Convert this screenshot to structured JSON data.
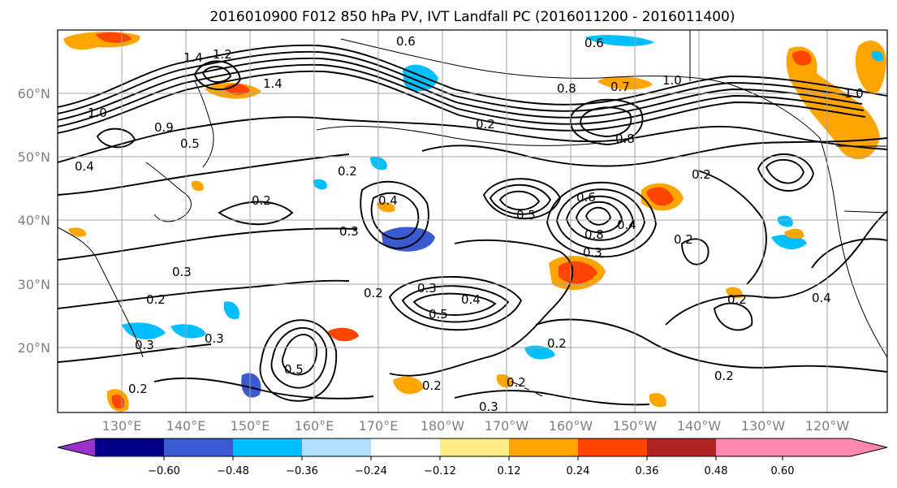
{
  "figure": {
    "title": "2016010900 F012 850 hPa PV, IVT Landfall PC (2016011200 - 2016011400)"
  },
  "map": {
    "lat_labels": [
      "60°N",
      "50°N",
      "40°N",
      "30°N",
      "20°N"
    ],
    "lon_labels": [
      "130°E",
      "140°E",
      "150°E",
      "160°E",
      "170°E",
      "180°W",
      "170°W",
      "160°W",
      "150°W",
      "140°W",
      "130°W",
      "120°W"
    ],
    "contour_labels": [
      "0.6",
      "0.6",
      "1.4",
      "1.2",
      "1.4",
      "1.0",
      "0.8",
      "0.7",
      "1.0",
      "1.0",
      "0.9",
      "0.5",
      "0.4",
      "0.2",
      "0.2",
      "0.2",
      "0.4",
      "0.3",
      "0.2",
      "0.5",
      "0.4",
      "0.8",
      "0.3",
      "0.6",
      "0.8",
      "0.2",
      "0.3",
      "0.2",
      "0.3",
      "0.5",
      "0.4",
      "0.2",
      "0.3",
      "0.3",
      "0.5",
      "0.2",
      "0.2",
      "0.3",
      "0.2",
      "0.2",
      "0.2",
      "0.2",
      "0.4"
    ],
    "shaded_colors": {
      "strong_positive": "#ff4500",
      "positive": "#ffa500",
      "weak_positive": "#ffee88",
      "negative": "#00bfff",
      "strong_negative": "#3a5bcf",
      "weak_negative": "#b0e0ff"
    }
  },
  "colorbar": {
    "colors": [
      "#9932cc",
      "#00008b",
      "#3a5bcf",
      "#00bfff",
      "#b0e0ff",
      "#ffffff",
      "#ffee88",
      "#ffa500",
      "#ff4500",
      "#b22222",
      "#ff88b0"
    ],
    "tick_labels": [
      "−0.60",
      "−0.48",
      "−0.36",
      "−0.24",
      "−0.12",
      "0.12",
      "0.24",
      "0.36",
      "0.48",
      "0.60"
    ]
  }
}
